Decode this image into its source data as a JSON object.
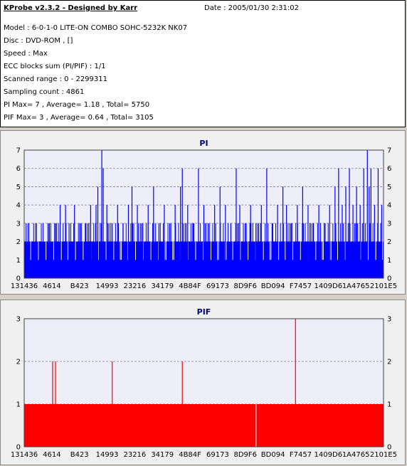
{
  "header": {
    "title": "KProbe v2.3.2 - Designed by Karr",
    "date": "Date : 2005/01/30 2:31:02",
    "lines": [
      "Model : 6-0-1-0 LITE-ON COMBO SOHC-5232K NK07",
      "Disc : DVD-ROM ,  []",
      "Speed : Max",
      "ECC blocks sum (PI/PIF) : 1/1",
      "Scanned range : 0 - 2299311",
      "Sampling count : 4861",
      "PI Max= 7 , Average= 1.18 , Total= 5750",
      "PIF Max= 3 , Average= 0.64 , Total= 3105"
    ]
  },
  "colors": {
    "pi_bar": "#0000ff",
    "pif_bar": "#ff0000",
    "plot_bg": "#eeeef8",
    "grid": "#8080a0"
  },
  "chart_data": [
    {
      "type": "bar",
      "title": "PI",
      "ylim": [
        0,
        7
      ],
      "yticks": [
        0,
        1,
        2,
        3,
        4,
        5,
        6,
        7
      ],
      "xtick_labels": [
        "131436",
        "4614",
        "B423",
        "14993",
        "23216",
        "34179",
        "4B84F",
        "69173",
        "8D9F6",
        "BD094",
        "F7457",
        "1409D6",
        "1A4765",
        "2101E5"
      ],
      "x_range": [
        0,
        2299311
      ],
      "sampling_count": 4861,
      "max": 7,
      "average": 1.18,
      "total": 5750,
      "baseline_value": 2,
      "spikes": [
        {
          "pos": 0.07,
          "value": 3
        },
        {
          "pos": 0.085,
          "value": 3
        },
        {
          "pos": 0.1,
          "value": 4
        },
        {
          "pos": 0.115,
          "value": 4
        },
        {
          "pos": 0.125,
          "value": 3
        },
        {
          "pos": 0.14,
          "value": 4
        },
        {
          "pos": 0.155,
          "value": 3
        },
        {
          "pos": 0.17,
          "value": 3
        },
        {
          "pos": 0.185,
          "value": 4
        },
        {
          "pos": 0.2,
          "value": 4
        },
        {
          "pos": 0.205,
          "value": 5
        },
        {
          "pos": 0.216,
          "value": 7
        },
        {
          "pos": 0.22,
          "value": 6
        },
        {
          "pos": 0.23,
          "value": 4
        },
        {
          "pos": 0.245,
          "value": 3
        },
        {
          "pos": 0.26,
          "value": 4
        },
        {
          "pos": 0.275,
          "value": 3
        },
        {
          "pos": 0.29,
          "value": 4
        },
        {
          "pos": 0.3,
          "value": 5
        },
        {
          "pos": 0.315,
          "value": 4
        },
        {
          "pos": 0.33,
          "value": 3
        },
        {
          "pos": 0.345,
          "value": 4
        },
        {
          "pos": 0.36,
          "value": 5
        },
        {
          "pos": 0.375,
          "value": 3
        },
        {
          "pos": 0.39,
          "value": 4
        },
        {
          "pos": 0.405,
          "value": 3
        },
        {
          "pos": 0.42,
          "value": 4
        },
        {
          "pos": 0.435,
          "value": 5
        },
        {
          "pos": 0.44,
          "value": 6
        },
        {
          "pos": 0.455,
          "value": 4
        },
        {
          "pos": 0.47,
          "value": 3
        },
        {
          "pos": 0.485,
          "value": 6
        },
        {
          "pos": 0.5,
          "value": 4
        },
        {
          "pos": 0.515,
          "value": 3
        },
        {
          "pos": 0.53,
          "value": 4
        },
        {
          "pos": 0.545,
          "value": 5
        },
        {
          "pos": 0.56,
          "value": 4
        },
        {
          "pos": 0.575,
          "value": 3
        },
        {
          "pos": 0.59,
          "value": 6
        },
        {
          "pos": 0.6,
          "value": 4
        },
        {
          "pos": 0.615,
          "value": 3
        },
        {
          "pos": 0.63,
          "value": 4
        },
        {
          "pos": 0.645,
          "value": 3
        },
        {
          "pos": 0.66,
          "value": 4
        },
        {
          "pos": 0.675,
          "value": 6
        },
        {
          "pos": 0.69,
          "value": 3
        },
        {
          "pos": 0.705,
          "value": 4
        },
        {
          "pos": 0.72,
          "value": 5
        },
        {
          "pos": 0.73,
          "value": 4
        },
        {
          "pos": 0.745,
          "value": 3
        },
        {
          "pos": 0.76,
          "value": 4
        },
        {
          "pos": 0.775,
          "value": 5
        },
        {
          "pos": 0.79,
          "value": 4
        },
        {
          "pos": 0.805,
          "value": 3
        },
        {
          "pos": 0.82,
          "value": 4
        },
        {
          "pos": 0.835,
          "value": 3
        },
        {
          "pos": 0.85,
          "value": 4
        },
        {
          "pos": 0.865,
          "value": 5
        },
        {
          "pos": 0.875,
          "value": 6
        },
        {
          "pos": 0.885,
          "value": 4
        },
        {
          "pos": 0.895,
          "value": 5
        },
        {
          "pos": 0.905,
          "value": 6
        },
        {
          "pos": 0.915,
          "value": 4
        },
        {
          "pos": 0.925,
          "value": 5
        },
        {
          "pos": 0.935,
          "value": 4
        },
        {
          "pos": 0.945,
          "value": 6
        },
        {
          "pos": 0.955,
          "value": 7
        },
        {
          "pos": 0.96,
          "value": 5
        },
        {
          "pos": 0.965,
          "value": 6
        },
        {
          "pos": 0.975,
          "value": 4
        },
        {
          "pos": 0.985,
          "value": 6
        },
        {
          "pos": 0.995,
          "value": 4
        }
      ]
    },
    {
      "type": "bar",
      "title": "PIF",
      "ylim": [
        0,
        3
      ],
      "yticks": [
        0,
        1,
        2,
        3
      ],
      "xtick_labels": [
        "131436",
        "4614",
        "B423",
        "14993",
        "23216",
        "34179",
        "4B84F",
        "69173",
        "8D9F6",
        "BD094",
        "F7457",
        "1409D6",
        "1A4765",
        "2101E5"
      ],
      "x_range": [
        0,
        2299311
      ],
      "sampling_count": 4861,
      "max": 3,
      "average": 0.64,
      "total": 3105,
      "baseline_value": 1,
      "spikes": [
        {
          "pos": 0.079,
          "value": 2
        },
        {
          "pos": 0.087,
          "value": 2
        },
        {
          "pos": 0.245,
          "value": 2
        },
        {
          "pos": 0.44,
          "value": 2
        },
        {
          "pos": 0.755,
          "value": 3
        }
      ],
      "gaps": [
        {
          "pos": 0.645,
          "value": 0
        }
      ]
    }
  ]
}
